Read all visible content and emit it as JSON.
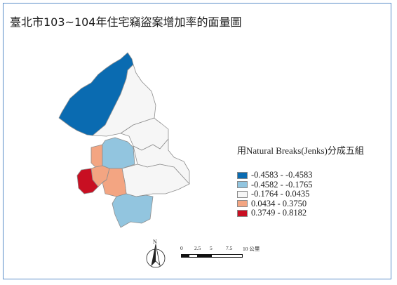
{
  "title": "臺北市103~104年住宅竊盜案增加率的面量圖",
  "legend": {
    "title": "用Natural Breaks(Jenks)分成五組",
    "classes": [
      {
        "label": "-0.4583 - -0.4583",
        "color": "#0a6bb1"
      },
      {
        "label": "-0.4582 - -0.1765",
        "color": "#92c5df"
      },
      {
        "label": "-0.1764 - 0.0435",
        "color": "#f6f6f6"
      },
      {
        "label": "0.0434 - 0.3750",
        "color": "#f3a582"
      },
      {
        "label": "0.3749 - 0.8182",
        "color": "#c80f22"
      }
    ]
  },
  "north_arrow": {
    "letter": "N",
    "icon": "north-arrow-icon"
  },
  "scale_bar": {
    "ticks": [
      "0",
      "2.5",
      "5",
      "7.5",
      "10 公里"
    ]
  },
  "map_regions": [
    {
      "name": "northwest-district",
      "class": 0
    },
    {
      "name": "north-central-district",
      "class": 2
    },
    {
      "name": "northeast-district",
      "class": 2
    },
    {
      "name": "east-district",
      "class": 2
    },
    {
      "name": "central-district",
      "class": 2
    },
    {
      "name": "west-district-upper",
      "class": 3
    },
    {
      "name": "central-blue-district",
      "class": 1
    },
    {
      "name": "west-district-lower",
      "class": 3
    },
    {
      "name": "southwest-district",
      "class": 4
    },
    {
      "name": "south-center-district",
      "class": 3
    },
    {
      "name": "south-district",
      "class": 1
    }
  ]
}
